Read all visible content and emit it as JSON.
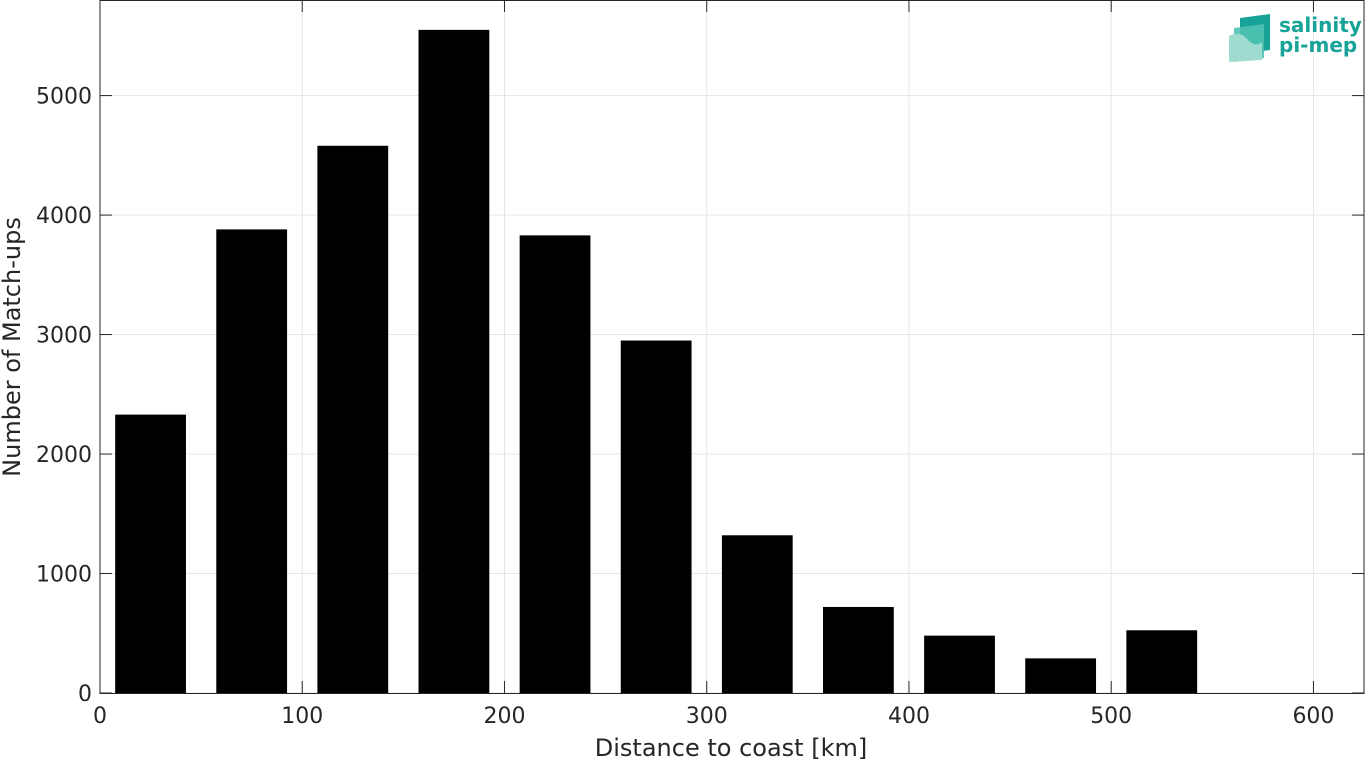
{
  "chart_data": {
    "type": "bar",
    "bin_width": 50,
    "x": [
      25,
      75,
      125,
      175,
      225,
      275,
      325,
      375,
      425,
      475,
      525
    ],
    "values": [
      2330,
      3880,
      4580,
      5550,
      3830,
      2950,
      1320,
      720,
      480,
      290,
      525
    ],
    "xlabel": "Distance to coast [km]",
    "ylabel": "Number of Match-ups",
    "xlim": [
      0,
      625
    ],
    "ylim": [
      0,
      5800
    ],
    "xticks": [
      0,
      100,
      200,
      300,
      400,
      500,
      600
    ],
    "yticks": [
      0,
      1000,
      2000,
      3000,
      4000,
      5000
    ],
    "grid": true,
    "bar_color": "#000000"
  },
  "logo": {
    "line1": "salinity",
    "line2": "pi-mep",
    "icon": "layered-waves-icon",
    "color": "#17a398"
  }
}
